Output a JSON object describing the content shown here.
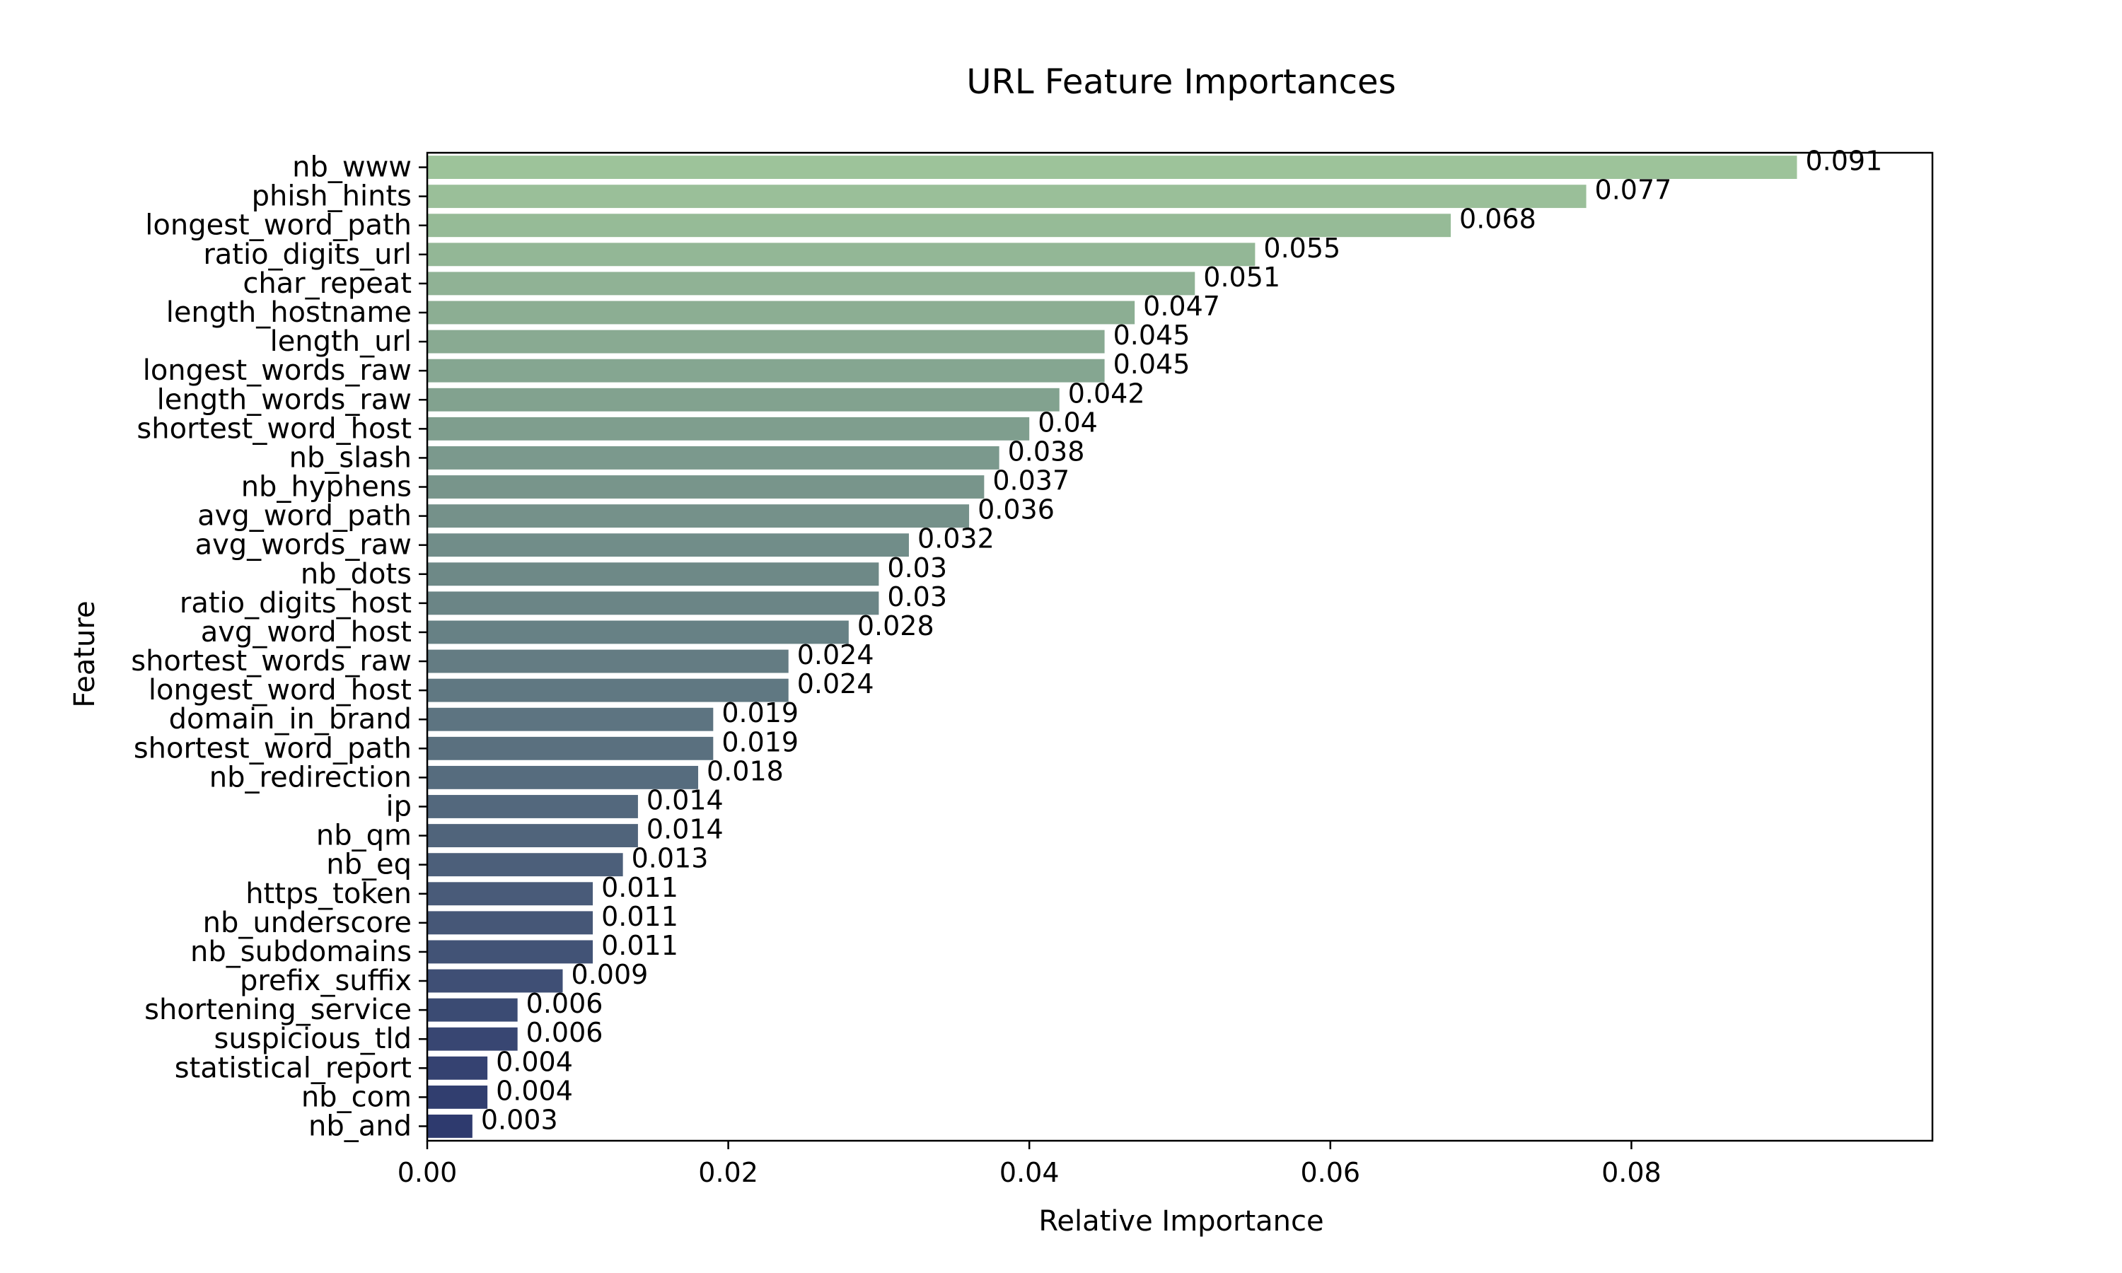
{
  "chart_data": {
    "type": "bar",
    "orientation": "horizontal",
    "title": "URL Feature Importances",
    "xlabel": "Relative Importance",
    "ylabel": "Feature",
    "xlim": [
      0,
      0.1
    ],
    "xticks": [
      0.0,
      0.02,
      0.04,
      0.06,
      0.08
    ],
    "xtick_labels": [
      "0.00",
      "0.02",
      "0.04",
      "0.06",
      "0.08"
    ],
    "grid": false,
    "colormap": "crest",
    "color_start": "#9dc39a",
    "color_end": "#2e3a6e",
    "categories": [
      "nb_www",
      "phish_hints",
      "longest_word_path",
      "ratio_digits_url",
      "char_repeat",
      "length_hostname",
      "length_url",
      "longest_words_raw",
      "length_words_raw",
      "shortest_word_host",
      "nb_slash",
      "nb_hyphens",
      "avg_word_path",
      "avg_words_raw",
      "nb_dots",
      "ratio_digits_host",
      "avg_word_host",
      "shortest_words_raw",
      "longest_word_host",
      "domain_in_brand",
      "shortest_word_path",
      "nb_redirection",
      "ip",
      "nb_qm",
      "nb_eq",
      "https_token",
      "nb_underscore",
      "nb_subdomains",
      "prefix_suffix",
      "shortening_service",
      "suspicious_tld",
      "statistical_report",
      "nb_com",
      "nb_and"
    ],
    "values": [
      0.091,
      0.077,
      0.068,
      0.055,
      0.051,
      0.047,
      0.045,
      0.045,
      0.042,
      0.04,
      0.038,
      0.037,
      0.036,
      0.032,
      0.03,
      0.03,
      0.028,
      0.024,
      0.024,
      0.019,
      0.019,
      0.018,
      0.014,
      0.014,
      0.013,
      0.011,
      0.011,
      0.011,
      0.009,
      0.006,
      0.006,
      0.004,
      0.004,
      0.003
    ],
    "data_labels": [
      "0.091",
      "0.077",
      "0.068",
      "0.055",
      "0.051",
      "0.047",
      "0.045",
      "0.045",
      "0.042",
      "0.04",
      "0.038",
      "0.037",
      "0.036",
      "0.032",
      "0.03",
      "0.03",
      "0.028",
      "0.024",
      "0.024",
      "0.019",
      "0.019",
      "0.018",
      "0.014",
      "0.014",
      "0.013",
      "0.011",
      "0.011",
      "0.011",
      "0.009",
      "0.006",
      "0.006",
      "0.004",
      "0.004",
      "0.003"
    ]
  }
}
